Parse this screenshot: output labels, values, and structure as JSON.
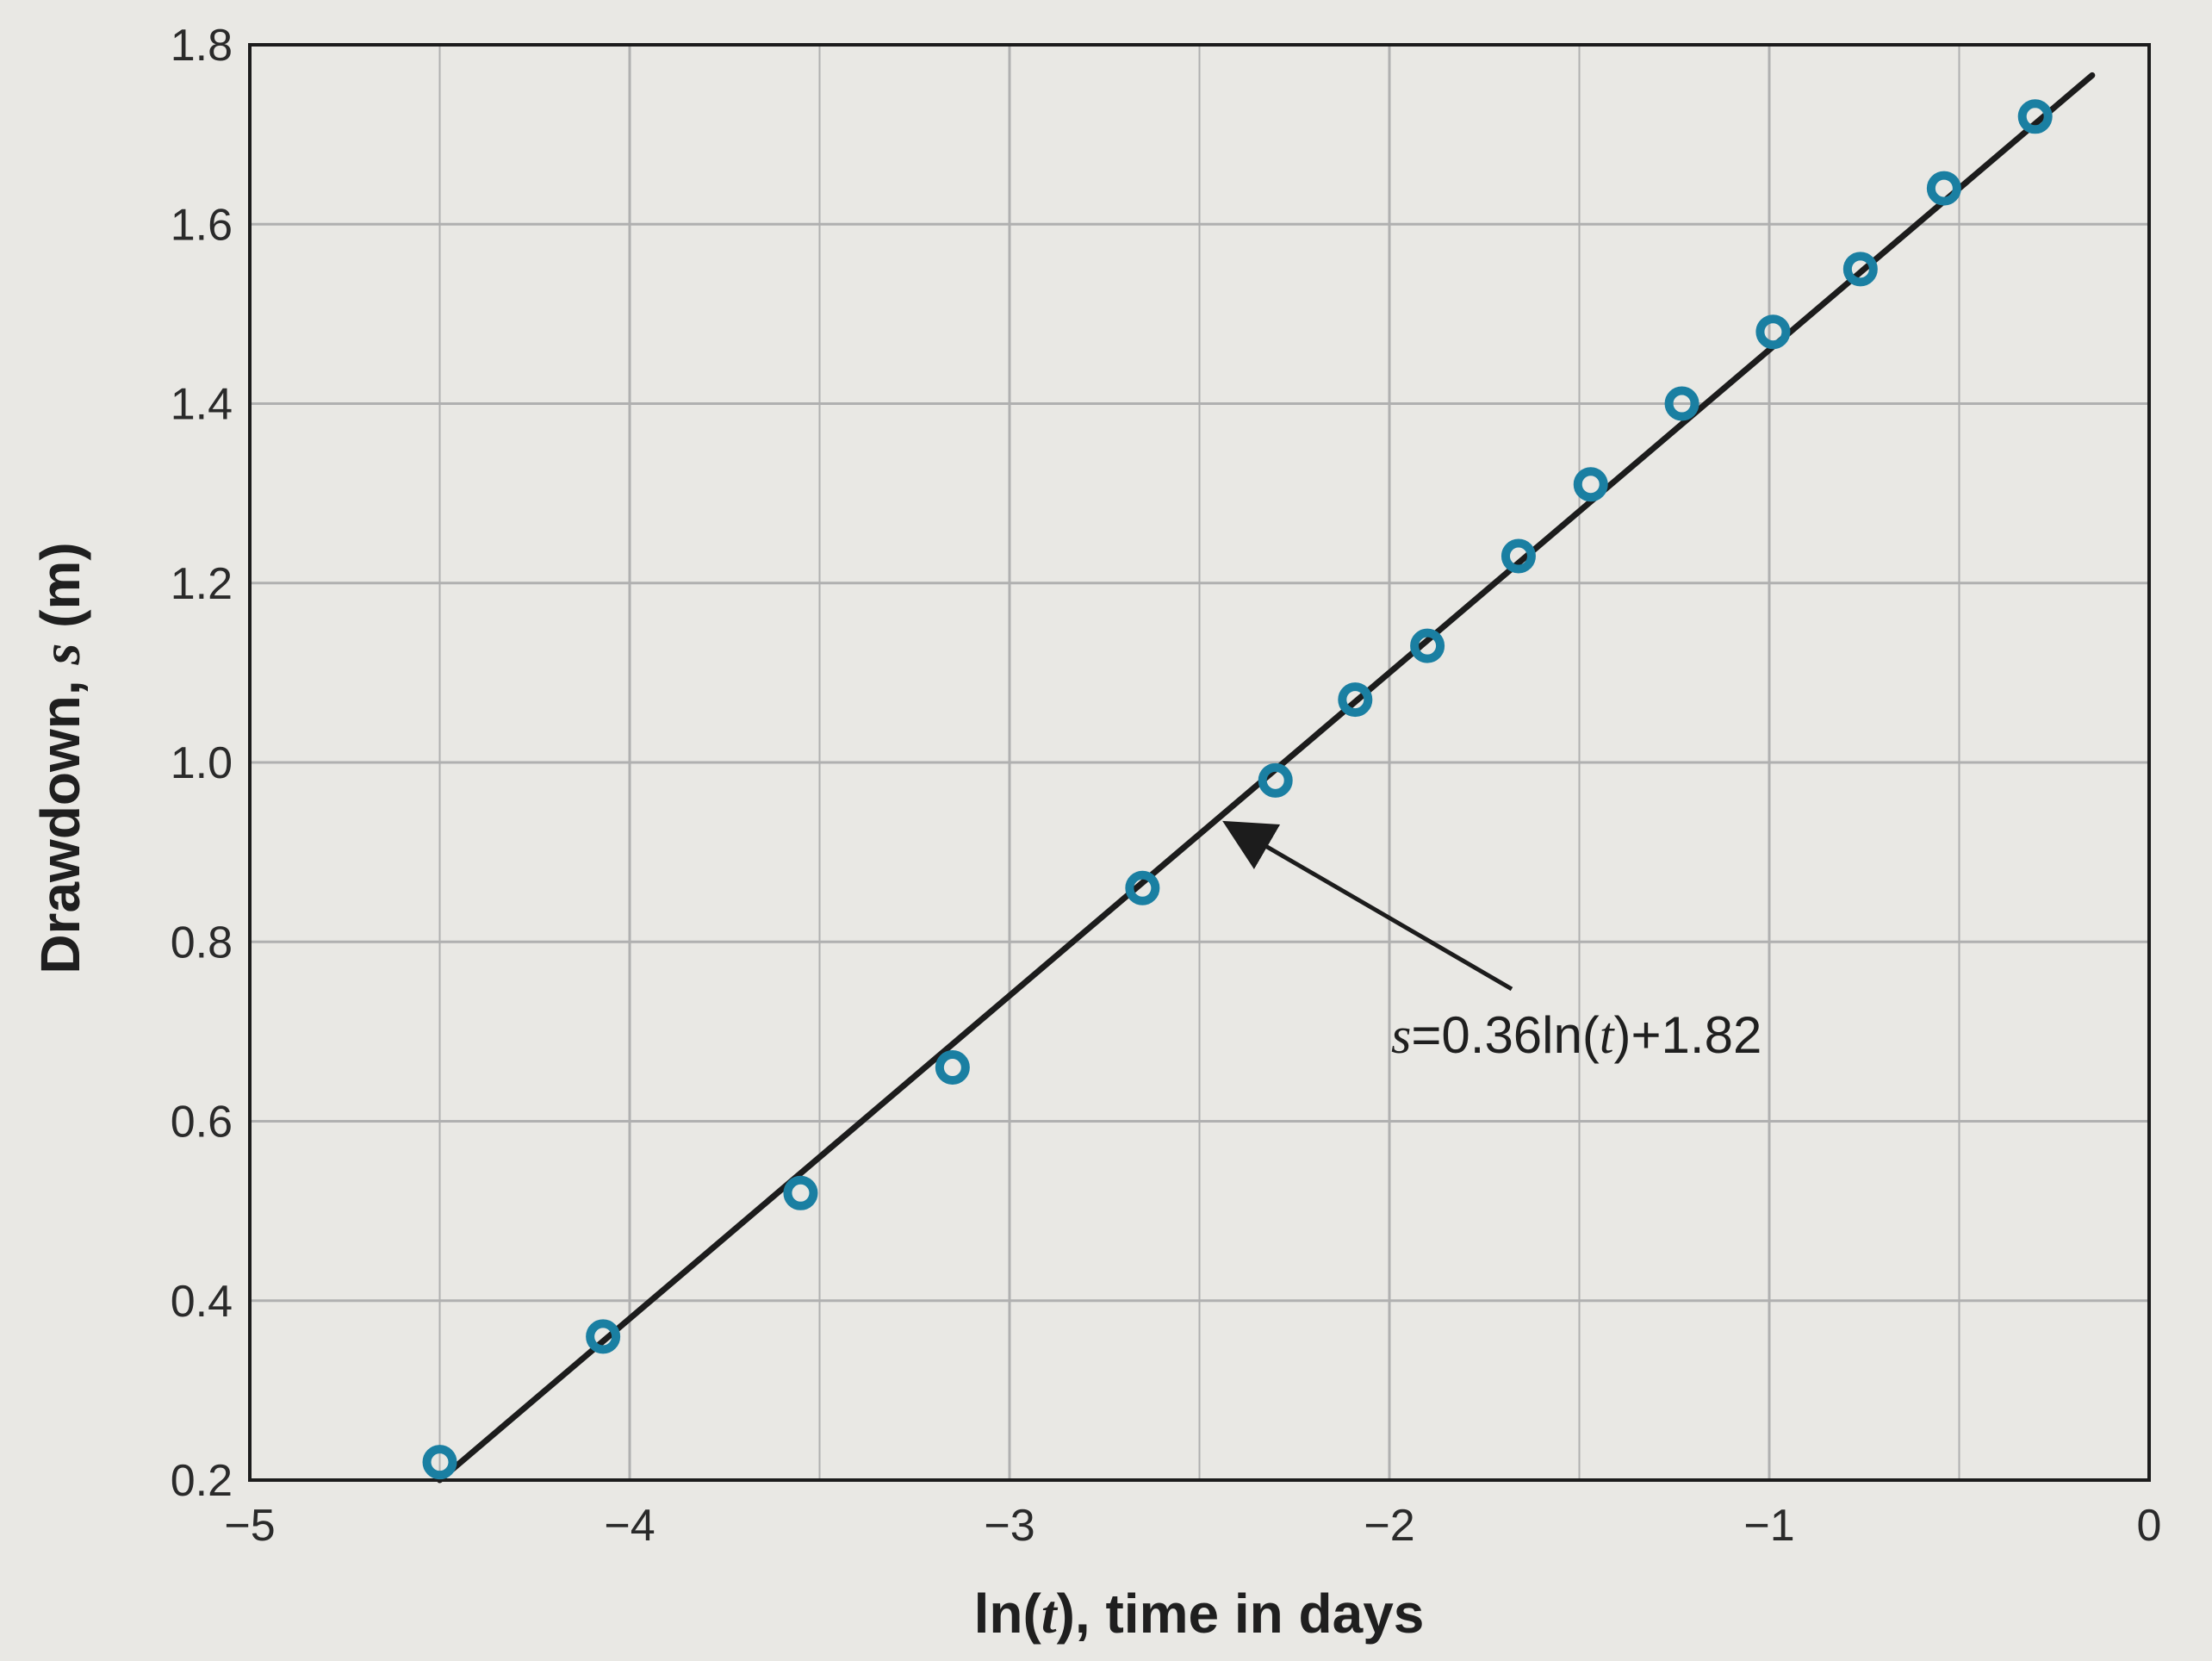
{
  "chart_data": {
    "type": "scatter",
    "xlabel": {
      "before": "ln(",
      "var": "t",
      "after": "), time in days"
    },
    "ylabel": {
      "before": "Drawdown, ",
      "var": "s",
      "after": " (m)"
    },
    "xlim": [
      -5,
      0
    ],
    "ylim": [
      0.2,
      1.8
    ],
    "xticks": [
      -5,
      -4,
      -3,
      -2,
      -1,
      0
    ],
    "yticks": [
      0.2,
      0.4,
      0.6,
      0.8,
      1.0,
      1.2,
      1.4,
      1.6,
      1.8
    ],
    "xtick_labels": [
      "−5",
      "−4",
      "−3",
      "−2",
      "−1",
      "0"
    ],
    "ytick_labels": [
      "0.2",
      "0.4",
      "0.6",
      "0.8",
      "1.0",
      "1.2",
      "1.4",
      "1.6",
      "1.8"
    ],
    "grid": true,
    "points": [
      {
        "x": -4.5,
        "y": 0.22
      },
      {
        "x": -4.07,
        "y": 0.36
      },
      {
        "x": -3.55,
        "y": 0.52
      },
      {
        "x": -3.15,
        "y": 0.66
      },
      {
        "x": -2.65,
        "y": 0.86
      },
      {
        "x": -2.3,
        "y": 0.98
      },
      {
        "x": -2.09,
        "y": 1.07
      },
      {
        "x": -1.9,
        "y": 1.13
      },
      {
        "x": -1.66,
        "y": 1.23
      },
      {
        "x": -1.47,
        "y": 1.31
      },
      {
        "x": -1.23,
        "y": 1.4
      },
      {
        "x": -0.99,
        "y": 1.48
      },
      {
        "x": -0.76,
        "y": 1.55
      },
      {
        "x": -0.54,
        "y": 1.64
      },
      {
        "x": -0.3,
        "y": 1.72
      }
    ],
    "fit_line": {
      "slope": 0.36,
      "intercept": 1.82,
      "x_start": -4.5,
      "x_end": -0.15
    },
    "annotation": {
      "parts": [
        {
          "text": "s",
          "italic": true
        },
        {
          "text": "=0.36ln(",
          "italic": false
        },
        {
          "text": "t",
          "italic": true
        },
        {
          "text": ")+1.82",
          "italic": false
        }
      ],
      "arrow_to": {
        "x": -2.42,
        "y": 0.93
      }
    },
    "colors": {
      "marker": "#1a7fa2",
      "line": "#1c1c1c",
      "grid": "#b0b0b0",
      "frame": "#1c1c1c"
    }
  }
}
